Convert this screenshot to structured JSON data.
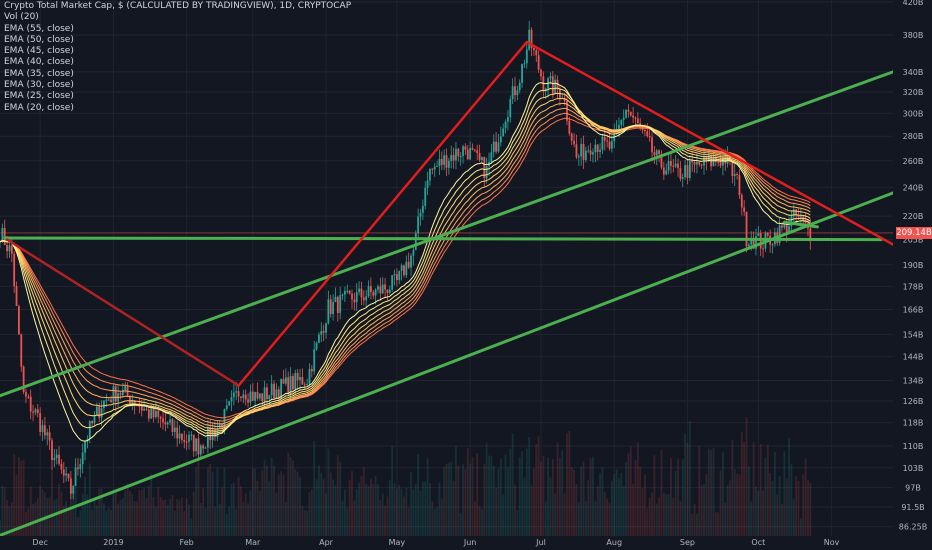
{
  "legend": {
    "title": "Crypto Total Market Cap, $ (CALCULATED BY TRADINGVIEW), 1D, CRYPTOCAP",
    "vol": "Vol (20)",
    "emas": [
      "EMA (55, close)",
      "EMA (50, close)",
      "EMA (45, close)",
      "EMA (40, close)",
      "EMA (35, close)",
      "EMA (30, close)",
      "EMA (25, close)",
      "EMA (20, close)"
    ]
  },
  "price_label": "209.14B",
  "colors": {
    "background": "#131722",
    "up": "#26a69a",
    "down": "#ef5350",
    "trend_green": "#4caf50",
    "trend_red": "#e01e1e",
    "trend_dark_red": "#b22222",
    "ema_gradient": [
      "#ff7043",
      "#ff8a50",
      "#ffa15a",
      "#ffb65e",
      "#ffc966",
      "#ffd970",
      "#ffe680",
      "#fff59d"
    ]
  },
  "chart_data": {
    "type": "candlestick",
    "y_scale": "log",
    "x_range": [
      "2018-11-14",
      "2019-11-27"
    ],
    "y_ticks": [
      "420B",
      "380B",
      "340B",
      "320B",
      "300B",
      "280B",
      "260B",
      "240B",
      "220B",
      "205B",
      "190B",
      "178B",
      "166B",
      "154B",
      "144B",
      "134B",
      "126B",
      "118B",
      "110B",
      "103B",
      "97B",
      "91.5B",
      "86.25B"
    ],
    "y_tick_values": [
      420,
      380,
      340,
      320,
      300,
      280,
      260,
      240,
      220,
      205,
      190,
      178,
      166,
      154,
      144,
      134,
      126,
      118,
      110,
      103,
      97,
      91.5,
      86.25
    ],
    "x_ticks": [
      "Dec",
      "2019",
      "Feb",
      "Mar",
      "Apr",
      "May",
      "Jun",
      "Jul",
      "Aug",
      "Sep",
      "Oct",
      "Nov"
    ],
    "x_tick_dates": [
      "2018-12-01",
      "2019-01-01",
      "2019-02-01",
      "2019-03-01",
      "2019-04-01",
      "2019-05-01",
      "2019-06-01",
      "2019-07-01",
      "2019-08-01",
      "2019-09-01",
      "2019-10-01",
      "2019-11-01"
    ],
    "last_price": 209.14,
    "price_path": [
      [
        "2018-11-14",
        210
      ],
      [
        "2018-11-19",
        196
      ],
      [
        "2018-11-24",
        128
      ],
      [
        "2018-11-30",
        120
      ],
      [
        "2018-12-07",
        106
      ],
      [
        "2018-12-14",
        96
      ],
      [
        "2018-12-20",
        112
      ],
      [
        "2018-12-27",
        125
      ],
      [
        "2019-01-03",
        130
      ],
      [
        "2019-01-09",
        127
      ],
      [
        "2019-01-15",
        122
      ],
      [
        "2019-01-22",
        118
      ],
      [
        "2019-01-30",
        113
      ],
      [
        "2019-02-06",
        110
      ],
      [
        "2019-02-15",
        117
      ],
      [
        "2019-02-24",
        131
      ],
      [
        "2019-03-03",
        127
      ],
      [
        "2019-03-12",
        131
      ],
      [
        "2019-03-24",
        135
      ],
      [
        "2019-04-02",
        167
      ],
      [
        "2019-04-12",
        172
      ],
      [
        "2019-04-22",
        175
      ],
      [
        "2019-05-01",
        180
      ],
      [
        "2019-05-08",
        198
      ],
      [
        "2019-05-14",
        250
      ],
      [
        "2019-05-22",
        262
      ],
      [
        "2019-05-30",
        270
      ],
      [
        "2019-06-08",
        252
      ],
      [
        "2019-06-16",
        300
      ],
      [
        "2019-06-22",
        335
      ],
      [
        "2019-06-26",
        375
      ],
      [
        "2019-07-02",
        330
      ],
      [
        "2019-07-10",
        320
      ],
      [
        "2019-07-16",
        262
      ],
      [
        "2019-07-23",
        275
      ],
      [
        "2019-07-31",
        270
      ],
      [
        "2019-08-06",
        305
      ],
      [
        "2019-08-12",
        285
      ],
      [
        "2019-08-20",
        258
      ],
      [
        "2019-08-28",
        250
      ],
      [
        "2019-09-08",
        258
      ],
      [
        "2019-09-17",
        262
      ],
      [
        "2019-09-23",
        240
      ],
      [
        "2019-09-26",
        207
      ],
      [
        "2019-10-03",
        203
      ],
      [
        "2019-10-10",
        210
      ],
      [
        "2019-10-17",
        220
      ],
      [
        "2019-10-23",
        209
      ]
    ],
    "annotations": {
      "green_lines": [
        {
          "from": [
            "2018-11-14",
            128
          ],
          "to": [
            "2019-11-27",
            340
          ]
        },
        {
          "from": [
            "2018-11-14",
            84
          ],
          "to": [
            "2019-11-27",
            236
          ]
        },
        {
          "from": [
            "2018-11-16",
            206
          ],
          "to": [
            "2019-11-22",
            205
          ]
        },
        {
          "from": [
            "2019-10-12",
            216
          ],
          "to": [
            "2019-10-26",
            213
          ]
        }
      ],
      "red_lines": [
        {
          "from": [
            "2019-02-23",
            132
          ],
          "to": [
            "2019-06-25",
            372
          ]
        },
        {
          "from": [
            "2019-06-25",
            372
          ],
          "to": [
            "2019-11-27",
            202
          ]
        }
      ],
      "dark_red_lines": [
        {
          "from": [
            "2018-11-17",
            205
          ],
          "to": [
            "2019-02-23",
            132
          ]
        }
      ],
      "horizontal_price_line": 209.14
    }
  }
}
